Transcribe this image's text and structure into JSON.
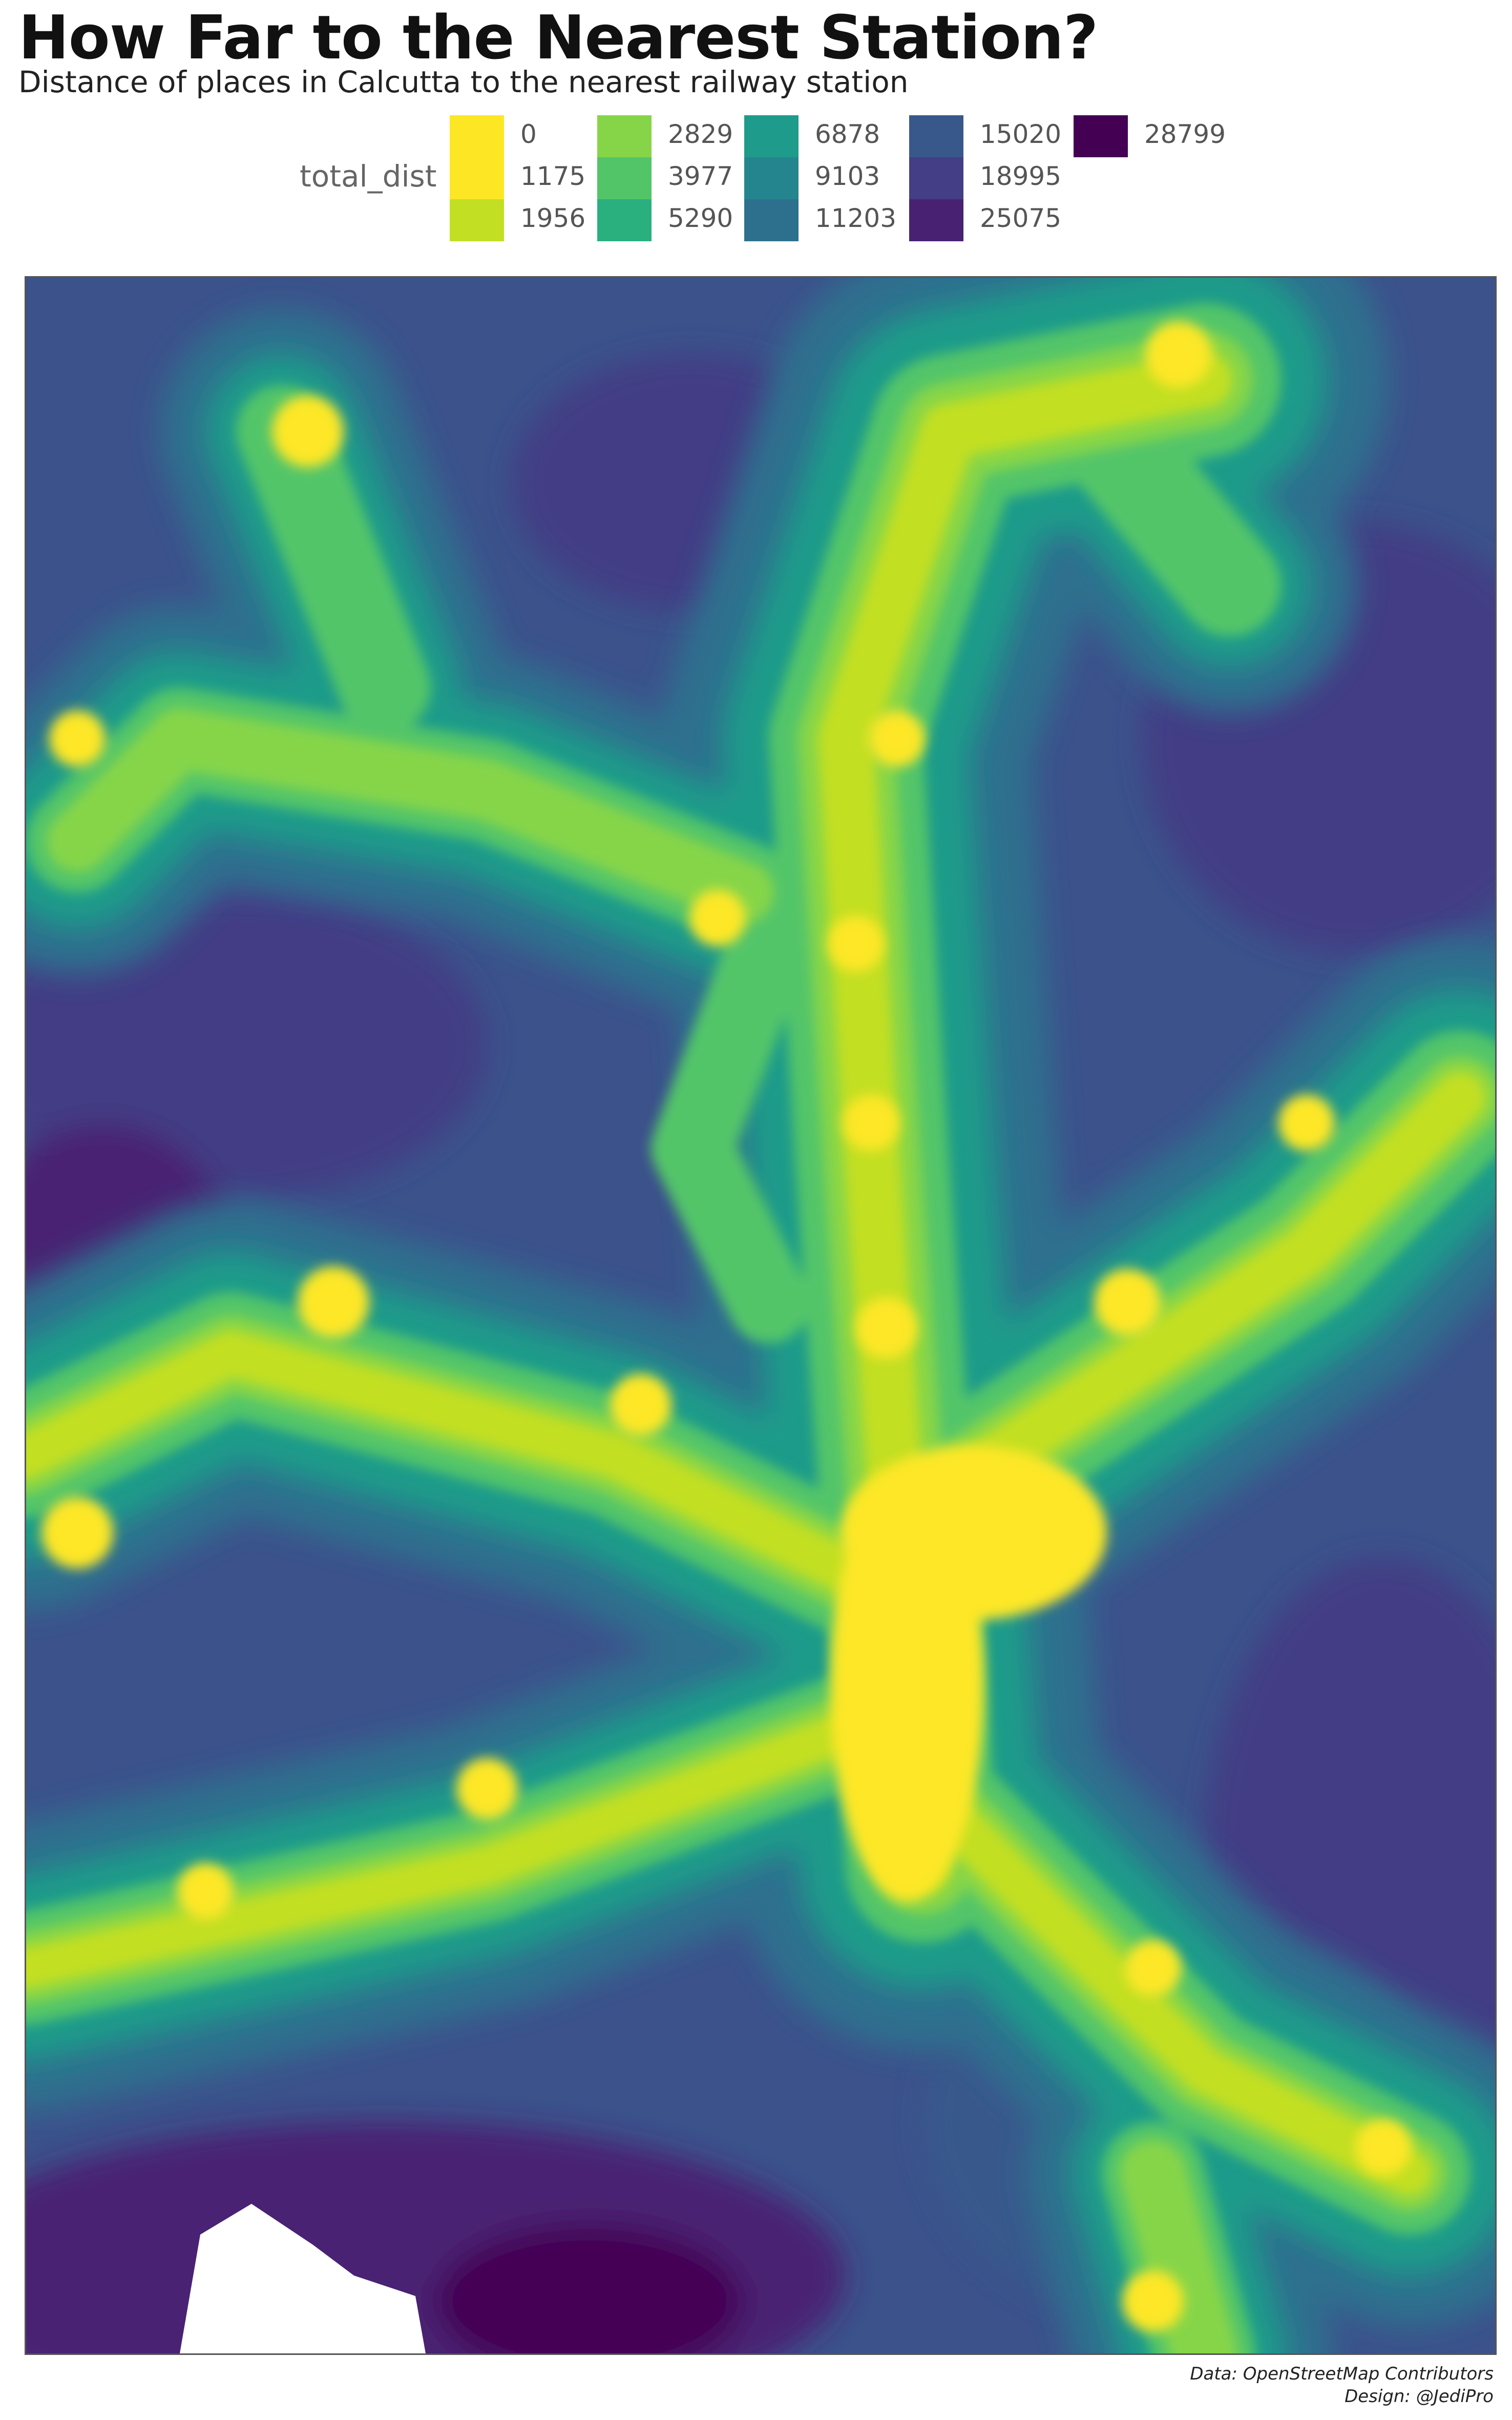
{
  "title": "How Far to the Nearest Station?",
  "subtitle": "Distance of places in Calcutta to the nearest railway station",
  "legend": {
    "title": "total_dist",
    "items": [
      {
        "label": "0",
        "color": "#fde725"
      },
      {
        "label": "1175",
        "color": "#fde725"
      },
      {
        "label": "1956",
        "color": "#c2df23"
      },
      {
        "label": "2829",
        "color": "#86d549"
      },
      {
        "label": "3977",
        "color": "#52c569"
      },
      {
        "label": "5290",
        "color": "#2ab07f"
      },
      {
        "label": "6878",
        "color": "#1e9b8a"
      },
      {
        "label": "9103",
        "color": "#25858e"
      },
      {
        "label": "11203",
        "color": "#2d708e"
      },
      {
        "label": "15020",
        "color": "#38588c"
      },
      {
        "label": "18995",
        "color": "#433e85"
      },
      {
        "label": "25075",
        "color": "#482173"
      },
      {
        "label": "28799",
        "color": "#440154"
      }
    ]
  },
  "caption": {
    "source": "Data: OpenStreetMap Contributors",
    "design": "Design: @JediPro"
  }
}
